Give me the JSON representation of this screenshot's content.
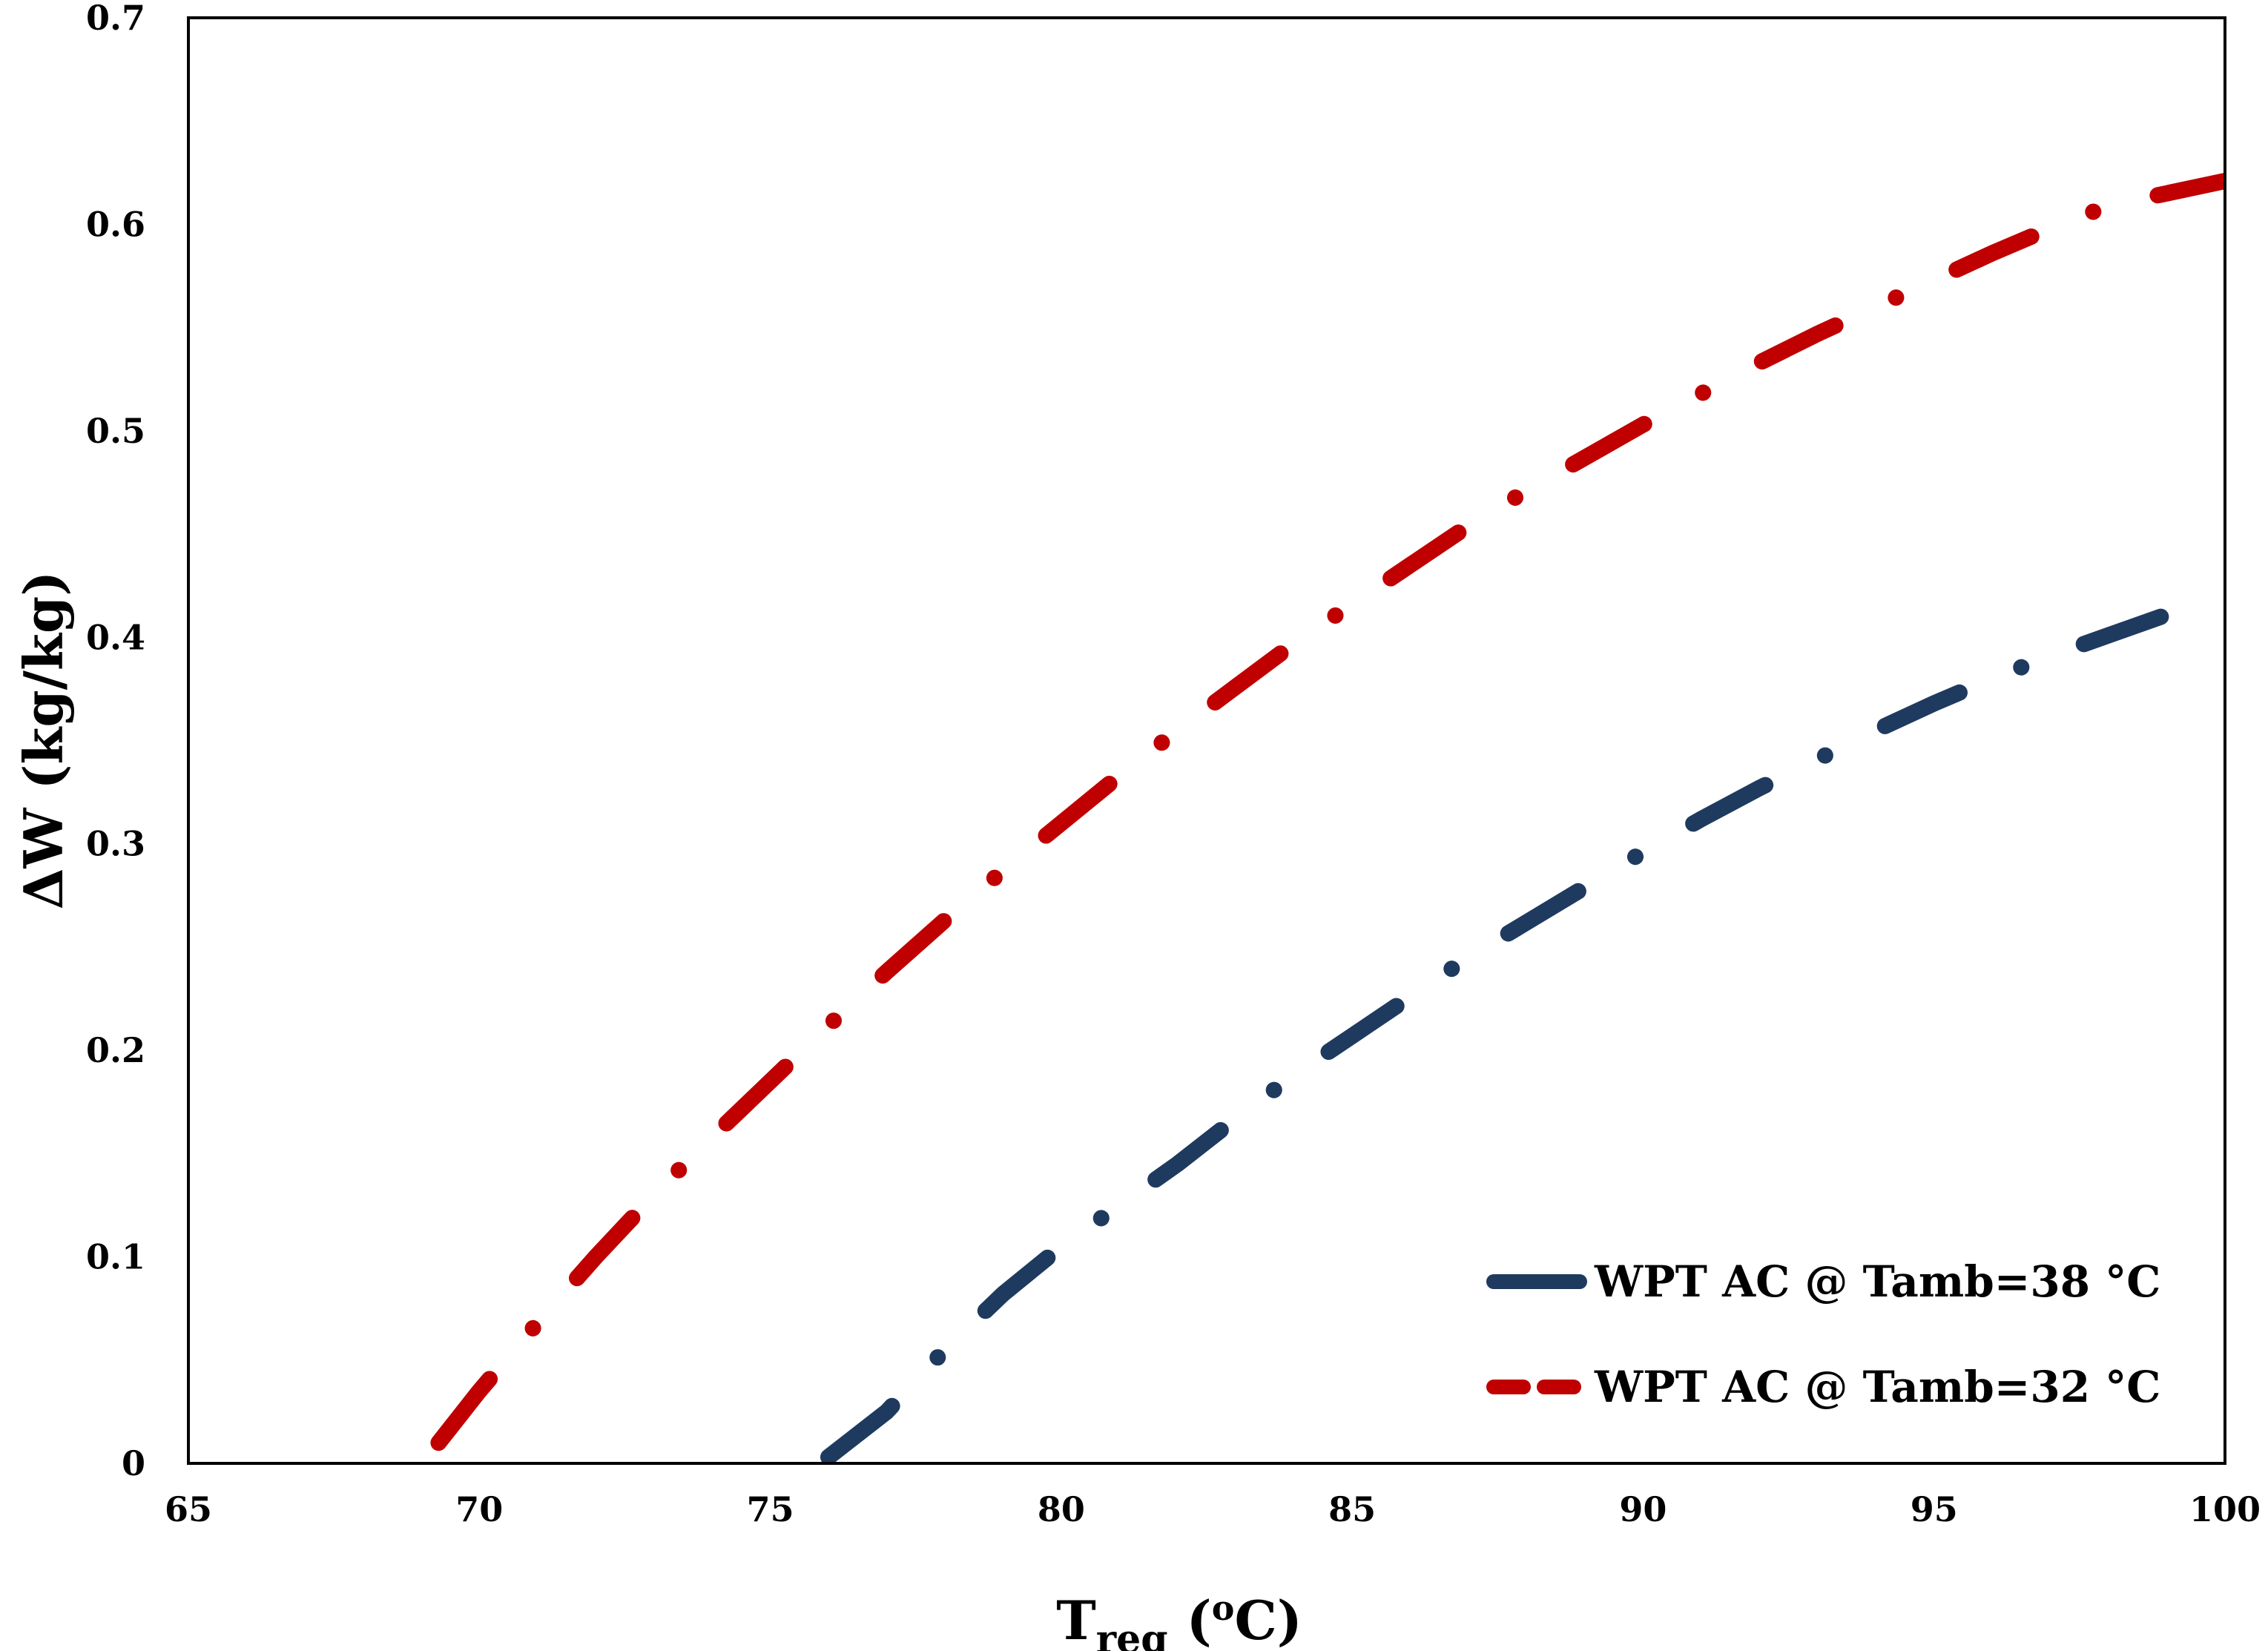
{
  "chart_data": {
    "type": "line",
    "title": "",
    "xlabel": {
      "main": "T",
      "sub": "reg",
      "unit_open": " (",
      "unit_sup": "o",
      "unit_close": "C)"
    },
    "ylabel": "ΔW (kg/kg)",
    "xlim": [
      65,
      100
    ],
    "ylim": [
      0,
      0.7
    ],
    "x_ticks": [
      "65",
      "70",
      "75",
      "80",
      "85",
      "90",
      "95",
      "100"
    ],
    "y_ticks": [
      "0",
      "0.1",
      "0.2",
      "0.3",
      "0.4",
      "0.5",
      "0.6",
      "0.7"
    ],
    "grid": false,
    "legend_position": "bottom-right",
    "series": [
      {
        "name": "WPT AC @ Tamb=38 °C",
        "color": "#1f3a5f",
        "style": "dash-dot",
        "points": [
          [
            76.0,
            0.003
          ],
          [
            77.0,
            0.025
          ],
          [
            78.0,
            0.055
          ],
          [
            79.0,
            0.082
          ],
          [
            80.0,
            0.105
          ],
          [
            81.0,
            0.125
          ],
          [
            82.0,
            0.145
          ],
          [
            83.0,
            0.167
          ],
          [
            84.0,
            0.188
          ],
          [
            85.0,
            0.207
          ],
          [
            86.0,
            0.226
          ],
          [
            87.0,
            0.245
          ],
          [
            88.0,
            0.262
          ],
          [
            89.0,
            0.279
          ],
          [
            90.0,
            0.296
          ],
          [
            91.0,
            0.312
          ],
          [
            92.0,
            0.327
          ],
          [
            93.0,
            0.341
          ],
          [
            94.0,
            0.355
          ],
          [
            95.0,
            0.368
          ],
          [
            96.0,
            0.38
          ],
          [
            97.0,
            0.391
          ],
          [
            98.0,
            0.401
          ],
          [
            99.0,
            0.411
          ],
          [
            100.0,
            0.415
          ]
        ]
      },
      {
        "name": "WPT AC @ Tamb=32 °C",
        "color": "#c00000",
        "style": "dash-dot",
        "points": [
          [
            69.3,
            0.01
          ],
          [
            70.0,
            0.035
          ],
          [
            71.0,
            0.068
          ],
          [
            72.0,
            0.1
          ],
          [
            73.0,
            0.13
          ],
          [
            74.0,
            0.158
          ],
          [
            75.0,
            0.185
          ],
          [
            76.0,
            0.212
          ],
          [
            77.0,
            0.238
          ],
          [
            78.0,
            0.263
          ],
          [
            79.0,
            0.287
          ],
          [
            80.0,
            0.31
          ],
          [
            81.0,
            0.333
          ],
          [
            82.0,
            0.355
          ],
          [
            83.0,
            0.376
          ],
          [
            84.0,
            0.397
          ],
          [
            85.0,
            0.416
          ],
          [
            86.0,
            0.435
          ],
          [
            87.0,
            0.454
          ],
          [
            88.0,
            0.471
          ],
          [
            89.0,
            0.487
          ],
          [
            90.0,
            0.503
          ],
          [
            91.0,
            0.518
          ],
          [
            92.0,
            0.533
          ],
          [
            93.0,
            0.547
          ],
          [
            94.0,
            0.56
          ],
          [
            95.0,
            0.573
          ],
          [
            96.0,
            0.586
          ],
          [
            97.0,
            0.598
          ],
          [
            98.0,
            0.609
          ],
          [
            99.0,
            0.615
          ],
          [
            100.0,
            0.621
          ]
        ]
      }
    ]
  }
}
